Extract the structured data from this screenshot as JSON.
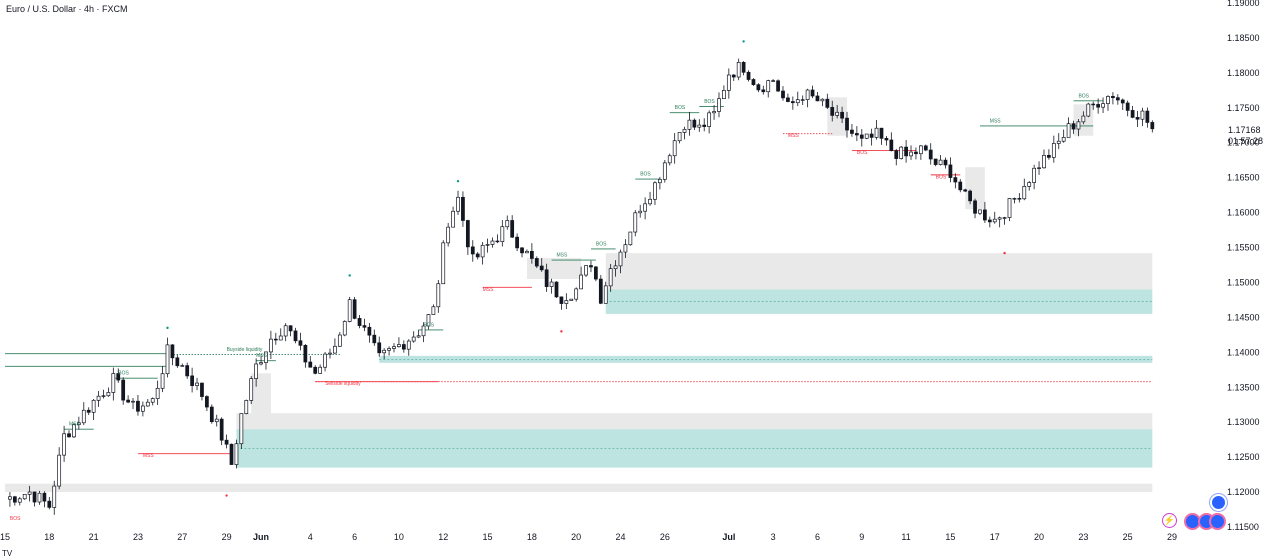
{
  "header": {
    "title": "Euro / U.S. Dollar · 4h · FXCM"
  },
  "price_axis": {
    "current_price": "1.17168",
    "countdown": "01:57:28"
  },
  "footer": {
    "note": "TV"
  },
  "icons": {
    "lightning": "lightning-icon",
    "indicators": [
      "indicator-icon",
      "indicator-icon",
      "indicator-icon",
      "indicator-icon"
    ]
  },
  "colors": {
    "bull": "#131722",
    "bear": "#131722",
    "bos_line": "#2e7d5b",
    "mss_bear": "#f23645",
    "bull_zone": "#b2dfdb",
    "gray_zone": "#e0e0e0",
    "pivot_high": "#089981",
    "pivot_low": "#f23645"
  },
  "chart_data": {
    "type": "candlestick",
    "title": "Euro / U.S. Dollar · 4h · FXCM",
    "ylim": [
      1.115,
      1.19
    ],
    "yticks": [
      "1.11500",
      "1.12000",
      "1.12500",
      "1.13000",
      "1.13500",
      "1.14000",
      "1.14500",
      "1.15000",
      "1.15500",
      "1.16000",
      "1.16500",
      "1.17000",
      "1.17500",
      "1.18000",
      "1.18500",
      "1.19000"
    ],
    "yticks_values": [
      1.115,
      1.12,
      1.125,
      1.13,
      1.135,
      1.14,
      1.145,
      1.15,
      1.155,
      1.16,
      1.165,
      1.17,
      1.175,
      1.18,
      1.185,
      1.19
    ],
    "xticks": [
      {
        "label": "15",
        "i": 0
      },
      {
        "label": "18",
        "i": 9
      },
      {
        "label": "21",
        "i": 18
      },
      {
        "label": "23",
        "i": 27
      },
      {
        "label": "27",
        "i": 36
      },
      {
        "label": "29",
        "i": 45
      },
      {
        "label": "Jun",
        "i": 52,
        "bold": true
      },
      {
        "label": "4",
        "i": 62
      },
      {
        "label": "6",
        "i": 71
      },
      {
        "label": "10",
        "i": 80
      },
      {
        "label": "12",
        "i": 89
      },
      {
        "label": "15",
        "i": 98
      },
      {
        "label": "18",
        "i": 107
      },
      {
        "label": "20",
        "i": 116
      },
      {
        "label": "24",
        "i": 125
      },
      {
        "label": "26",
        "i": 134
      },
      {
        "label": "Jul",
        "i": 147,
        "bold": true
      },
      {
        "label": "3",
        "i": 156
      },
      {
        "label": "6",
        "i": 165
      },
      {
        "label": "9",
        "i": 174
      },
      {
        "label": "11",
        "i": 183
      },
      {
        "label": "15",
        "i": 192
      },
      {
        "label": "17",
        "i": 201
      },
      {
        "label": "20",
        "i": 210
      },
      {
        "label": "23",
        "i": 219
      },
      {
        "label": "25",
        "i": 228
      },
      {
        "label": "29",
        "i": 237
      }
    ],
    "x_count": 238,
    "key_closes": [
      [
        0,
        1.119
      ],
      [
        5,
        1.12
      ],
      [
        9,
        1.118
      ],
      [
        12,
        1.128
      ],
      [
        18,
        1.133
      ],
      [
        22,
        1.136
      ],
      [
        26,
        1.132
      ],
      [
        30,
        1.133
      ],
      [
        33,
        1.14
      ],
      [
        36,
        1.138
      ],
      [
        40,
        1.134
      ],
      [
        44,
        1.128
      ],
      [
        46,
        1.124
      ],
      [
        48,
        1.131
      ],
      [
        51,
        1.138
      ],
      [
        54,
        1.142
      ],
      [
        57,
        1.144
      ],
      [
        60,
        1.14
      ],
      [
        63,
        1.137
      ],
      [
        67,
        1.141
      ],
      [
        70,
        1.147
      ],
      [
        73,
        1.143
      ],
      [
        76,
        1.139
      ],
      [
        80,
        1.141
      ],
      [
        84,
        1.143
      ],
      [
        87,
        1.146
      ],
      [
        90,
        1.159
      ],
      [
        92,
        1.162
      ],
      [
        95,
        1.153
      ],
      [
        99,
        1.156
      ],
      [
        102,
        1.158
      ],
      [
        106,
        1.154
      ],
      [
        110,
        1.15
      ],
      [
        113,
        1.148
      ],
      [
        116,
        1.149
      ],
      [
        119,
        1.153
      ],
      [
        121,
        1.148
      ],
      [
        123,
        1.152
      ],
      [
        126,
        1.156
      ],
      [
        129,
        1.161
      ],
      [
        132,
        1.164
      ],
      [
        135,
        1.169
      ],
      [
        138,
        1.173
      ],
      [
        141,
        1.172
      ],
      [
        144,
        1.174
      ],
      [
        147,
        1.18
      ],
      [
        150,
        1.181
      ],
      [
        153,
        1.178
      ],
      [
        156,
        1.179
      ],
      [
        159,
        1.175
      ],
      [
        162,
        1.177
      ],
      [
        165,
        1.176
      ],
      [
        168,
        1.174
      ],
      [
        171,
        1.172
      ],
      [
        174,
        1.17
      ],
      [
        177,
        1.171
      ],
      [
        180,
        1.169
      ],
      [
        183,
        1.168
      ],
      [
        186,
        1.169
      ],
      [
        189,
        1.167
      ],
      [
        192,
        1.166
      ],
      [
        195,
        1.162
      ],
      [
        198,
        1.16
      ],
      [
        201,
        1.159
      ],
      [
        204,
        1.161
      ],
      [
        207,
        1.164
      ],
      [
        210,
        1.167
      ],
      [
        213,
        1.169
      ],
      [
        216,
        1.172
      ],
      [
        219,
        1.174
      ],
      [
        222,
        1.176
      ],
      [
        225,
        1.177
      ],
      [
        228,
        1.175
      ],
      [
        231,
        1.174
      ],
      [
        233,
        1.172
      ]
    ],
    "zones": [
      {
        "kind": "gray",
        "x0": 0,
        "x1": 233,
        "y0": 1.12,
        "y1": 1.1212
      },
      {
        "kind": "teal",
        "x0": 47,
        "x1": 233,
        "y0": 1.1235,
        "y1": 1.129
      },
      {
        "kind": "gray",
        "x0": 47,
        "x1": 233,
        "y0": 1.129,
        "y1": 1.1313
      },
      {
        "kind": "gray",
        "x0": 50,
        "x1": 54,
        "y0": 1.1313,
        "y1": 1.137
      },
      {
        "kind": "teal",
        "x0": 76,
        "x1": 233,
        "y0": 1.1385,
        "y1": 1.1395
      },
      {
        "kind": "teal",
        "x0": 122,
        "x1": 233,
        "y0": 1.1455,
        "y1": 1.149
      },
      {
        "kind": "gray",
        "x0": 122,
        "x1": 233,
        "y0": 1.149,
        "y1": 1.1542
      },
      {
        "kind": "gray",
        "x0": 106,
        "x1": 117,
        "y0": 1.1505,
        "y1": 1.1535
      },
      {
        "kind": "gray",
        "x0": 167,
        "x1": 171,
        "y0": 1.171,
        "y1": 1.1765
      },
      {
        "kind": "gray",
        "x0": 195,
        "x1": 199,
        "y0": 1.1605,
        "y1": 1.1665
      },
      {
        "kind": "gray",
        "x0": 217,
        "x1": 221,
        "y0": 1.171,
        "y1": 1.1755
      }
    ],
    "levels": [
      {
        "color": "#2e7d5b",
        "x0": 0,
        "x1": 33,
        "y": 1.1398,
        "style": "solid"
      },
      {
        "color": "#2e7d5b",
        "x0": 0,
        "x1": 33,
        "y": 1.138,
        "style": "solid"
      },
      {
        "color": "#2e7d5b",
        "x0": 33,
        "x1": 68,
        "y": 1.1397,
        "style": "dotted"
      },
      {
        "color": "#f23645",
        "x0": 63,
        "x1": 233,
        "y": 1.1358,
        "style": "dotted"
      },
      {
        "color": "#f23645",
        "x0": 63,
        "x1": 88,
        "y": 1.1358,
        "style": "solid"
      },
      {
        "color": "#2e7d5b",
        "x0": 12,
        "x1": 18,
        "y": 1.129,
        "style": "solid"
      },
      {
        "color": "#2e7d5b",
        "x0": 22,
        "x1": 31,
        "y": 1.1363,
        "style": "solid"
      },
      {
        "color": "#f23645",
        "x0": 27,
        "x1": 46,
        "y": 1.1255,
        "style": "solid"
      },
      {
        "color": "#2e7d5b",
        "x0": 51,
        "x1": 55,
        "y": 1.1388,
        "style": "solid"
      },
      {
        "color": "#2e7d5b",
        "x0": 84,
        "x1": 89,
        "y": 1.1432,
        "style": "solid"
      },
      {
        "color": "#f23645",
        "x0": 97,
        "x1": 107,
        "y": 1.1493,
        "style": "solid"
      },
      {
        "color": "#2e7d5b",
        "x0": 111,
        "x1": 120,
        "y": 1.1532,
        "style": "solid"
      },
      {
        "color": "#2e7d5b",
        "x0": 119,
        "x1": 124,
        "y": 1.1548,
        "style": "solid"
      },
      {
        "color": "#2e7d5b",
        "x0": 128,
        "x1": 133,
        "y": 1.1648,
        "style": "solid"
      },
      {
        "color": "#2e7d5b",
        "x0": 135,
        "x1": 141,
        "y": 1.1743,
        "style": "solid"
      },
      {
        "color": "#2e7d5b",
        "x0": 141,
        "x1": 146,
        "y": 1.1752,
        "style": "solid"
      },
      {
        "color": "#f23645",
        "x0": 158,
        "x1": 168,
        "y": 1.1713,
        "style": "dotted"
      },
      {
        "color": "#f23645",
        "x0": 172,
        "x1": 185,
        "y": 1.1689,
        "style": "solid"
      },
      {
        "color": "#f23645",
        "x0": 188,
        "x1": 194,
        "y": 1.1654,
        "style": "solid"
      },
      {
        "color": "#2e7d5b",
        "x0": 198,
        "x1": 221,
        "y": 1.1724,
        "style": "solid"
      },
      {
        "color": "#2e7d5b",
        "x0": 217,
        "x1": 223,
        "y": 1.176,
        "style": "solid"
      }
    ],
    "labels": [
      {
        "text": "BOS",
        "i": 1,
        "y": 1.116,
        "color": "#f23645"
      },
      {
        "text": "MSS",
        "i": 13,
        "y": 1.1295,
        "color": "#2e7d5b"
      },
      {
        "text": "BOS",
        "i": 23,
        "y": 1.1368,
        "color": "#2e7d5b"
      },
      {
        "text": "MSS",
        "i": 28,
        "y": 1.125,
        "color": "#f23645"
      },
      {
        "text": "MSS",
        "i": 51,
        "y": 1.1393,
        "color": "#2e7d5b"
      },
      {
        "text": "Buyside liquidity",
        "i": 45,
        "y": 1.1402,
        "color": "#2e7d5b"
      },
      {
        "text": "Sellside liquidity",
        "i": 65,
        "y": 1.1353,
        "color": "#f23645"
      },
      {
        "text": "BOS",
        "i": 85,
        "y": 1.1437,
        "color": "#2e7d5b"
      },
      {
        "text": "MSS",
        "i": 97,
        "y": 1.1488,
        "color": "#f23645"
      },
      {
        "text": "MSS",
        "i": 112,
        "y": 1.1537,
        "color": "#2e7d5b"
      },
      {
        "text": "BOS",
        "i": 120,
        "y": 1.1553,
        "color": "#2e7d5b"
      },
      {
        "text": "BOS",
        "i": 129,
        "y": 1.1653,
        "color": "#2e7d5b"
      },
      {
        "text": "BOS",
        "i": 136,
        "y": 1.1748,
        "color": "#2e7d5b"
      },
      {
        "text": "BOS",
        "i": 142,
        "y": 1.1757,
        "color": "#2e7d5b"
      },
      {
        "text": "MSS",
        "i": 159,
        "y": 1.1708,
        "color": "#f23645"
      },
      {
        "text": "BOS",
        "i": 173,
        "y": 1.1684,
        "color": "#f23645"
      },
      {
        "text": "BOS",
        "i": 189,
        "y": 1.1649,
        "color": "#f23645"
      },
      {
        "text": "MSS",
        "i": 200,
        "y": 1.1729,
        "color": "#2e7d5b"
      },
      {
        "text": "BOS",
        "i": 218,
        "y": 1.1765,
        "color": "#2e7d5b"
      }
    ],
    "pivots": [
      {
        "i": 33,
        "y": 1.1435,
        "kind": "high"
      },
      {
        "i": 45,
        "y": 1.1195,
        "kind": "low"
      },
      {
        "i": 70,
        "y": 1.151,
        "kind": "high"
      },
      {
        "i": 92,
        "y": 1.1645,
        "kind": "high"
      },
      {
        "i": 113,
        "y": 1.143,
        "kind": "low"
      },
      {
        "i": 150,
        "y": 1.1845,
        "kind": "high"
      },
      {
        "i": 203,
        "y": 1.1542,
        "kind": "low"
      }
    ]
  }
}
